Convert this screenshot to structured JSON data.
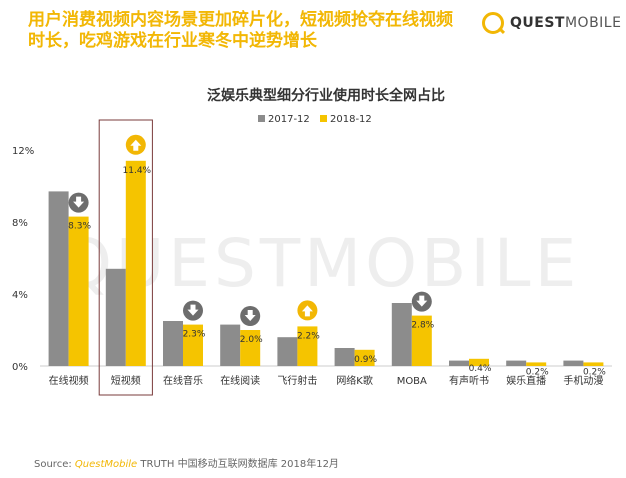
{
  "headline": "用户消费视频内容场景更加碎片化，短视频抢夺在线视频时长，吃鸡游戏在行业寒冬中逆势增长",
  "logo": {
    "brand": "QUEST",
    "brand_light": "MOBILE"
  },
  "watermark": "QUESTMOBILE",
  "source": {
    "prefix": "Source:",
    "brand": "QuestMobile",
    "rest": "TRUTH 中国移动互联网数据库 2018年12月"
  },
  "colors": {
    "s2017": "#8c8c8c",
    "s2018": "#f5c400",
    "accent": "#f2b705",
    "arrow_down": "#6d6d6d",
    "arrow_up": "#f2b705",
    "highlight_box": "#7a3b3b"
  },
  "chart_data": {
    "type": "bar",
    "title": "泛娱乐典型细分行业使用时长全网占比",
    "categories": [
      "在线视频",
      "短视频",
      "在线音乐",
      "在线阅读",
      "飞行射击",
      "网络K歌",
      "MOBA",
      "有声听书",
      "娱乐直播",
      "手机动漫"
    ],
    "series": [
      {
        "name": "2017-12",
        "values": [
          9.7,
          5.4,
          2.5,
          2.3,
          1.6,
          1.0,
          3.5,
          0.3,
          0.3,
          0.3
        ]
      },
      {
        "name": "2018-12",
        "values": [
          8.3,
          11.4,
          2.3,
          2.0,
          2.2,
          0.9,
          2.8,
          0.4,
          0.2,
          0.2
        ]
      }
    ],
    "data_labels": [
      "8.3%",
      "11.4%",
      "2.3%",
      "2.0%",
      "2.2%",
      "0.9%",
      "2.8%",
      "0.4%",
      "0.2%",
      "0.2%"
    ],
    "trend": [
      "down",
      "up",
      "down",
      "down",
      "up",
      "none",
      "down",
      "none",
      "none",
      "none"
    ],
    "highlight_category": "短视频",
    "y_ticks": [
      0,
      4,
      8,
      12
    ],
    "y_tick_labels": [
      "0%",
      "4%",
      "8%",
      "12%"
    ],
    "ylim": [
      0,
      13
    ],
    "legend_position": "top-center",
    "grid": false
  }
}
